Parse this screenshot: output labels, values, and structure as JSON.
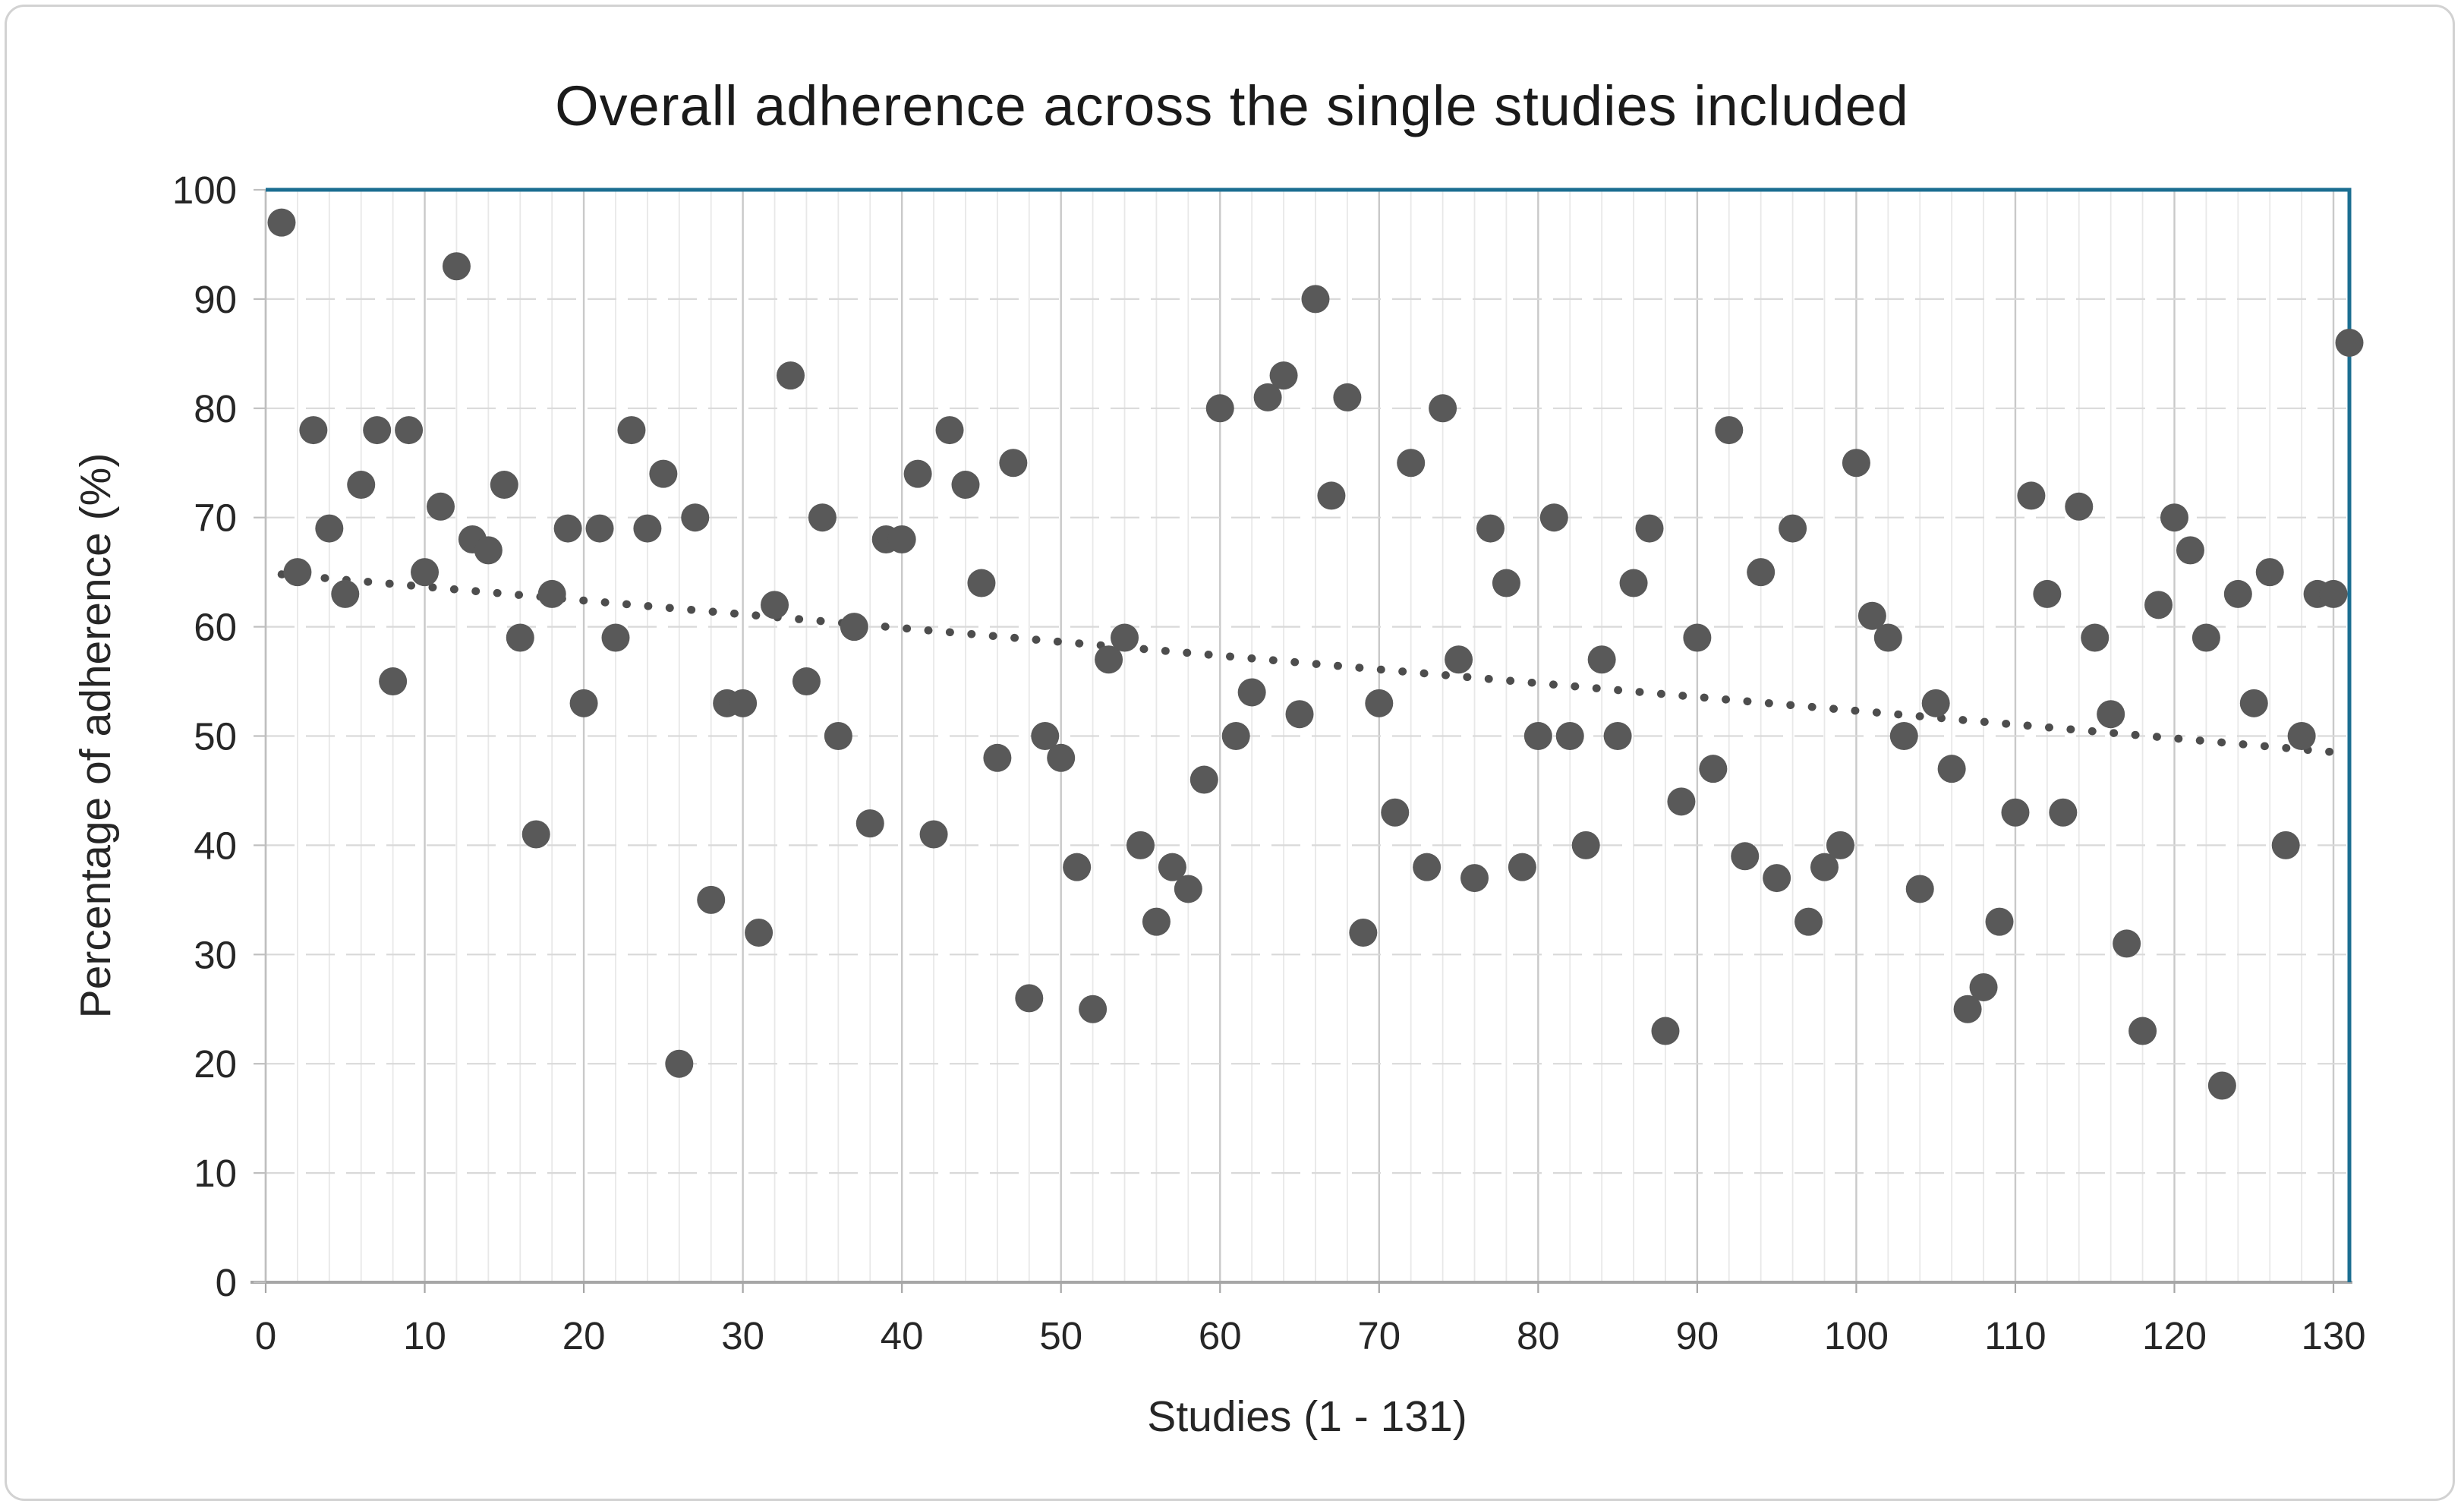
{
  "chart_data": {
    "type": "scatter",
    "title": "Overall adherence across the single studies included",
    "xlabel": "Studies (1 - 131)",
    "ylabel": "Percentage of adherence (%)",
    "xlim": [
      0,
      131
    ],
    "ylim": [
      0,
      100
    ],
    "x_ticks": [
      0,
      10,
      20,
      30,
      40,
      50,
      60,
      70,
      80,
      90,
      100,
      110,
      120,
      130
    ],
    "y_ticks": [
      0,
      10,
      20,
      30,
      40,
      50,
      60,
      70,
      80,
      90,
      100
    ],
    "grid": {
      "x_minor_step": 2,
      "x_major_step": 10,
      "y_step": 10,
      "horizontal_style": "dashed",
      "vertical_style": "solid"
    },
    "legend": "none",
    "series": [
      {
        "name": "Overall adherence",
        "points": [
          [
            1,
            97
          ],
          [
            2,
            65
          ],
          [
            3,
            78
          ],
          [
            4,
            69
          ],
          [
            5,
            63
          ],
          [
            6,
            73
          ],
          [
            7,
            78
          ],
          [
            8,
            55
          ],
          [
            9,
            78
          ],
          [
            10,
            65
          ],
          [
            11,
            71
          ],
          [
            12,
            93
          ],
          [
            13,
            68
          ],
          [
            14,
            67
          ],
          [
            15,
            73
          ],
          [
            16,
            59
          ],
          [
            17,
            41
          ],
          [
            18,
            63
          ],
          [
            19,
            69
          ],
          [
            20,
            53
          ],
          [
            21,
            69
          ],
          [
            22,
            59
          ],
          [
            23,
            78
          ],
          [
            24,
            69
          ],
          [
            25,
            74
          ],
          [
            26,
            20
          ],
          [
            27,
            70
          ],
          [
            28,
            35
          ],
          [
            29,
            53
          ],
          [
            30,
            53
          ],
          [
            31,
            32
          ],
          [
            32,
            62
          ],
          [
            33,
            83
          ],
          [
            34,
            55
          ],
          [
            35,
            70
          ],
          [
            36,
            50
          ],
          [
            37,
            60
          ],
          [
            38,
            42
          ],
          [
            39,
            68
          ],
          [
            40,
            68
          ],
          [
            41,
            74
          ],
          [
            42,
            41
          ],
          [
            43,
            78
          ],
          [
            44,
            73
          ],
          [
            45,
            64
          ],
          [
            46,
            48
          ],
          [
            47,
            75
          ],
          [
            48,
            26
          ],
          [
            49,
            50
          ],
          [
            50,
            48
          ],
          [
            51,
            38
          ],
          [
            52,
            25
          ],
          [
            53,
            57
          ],
          [
            54,
            59
          ],
          [
            55,
            40
          ],
          [
            56,
            33
          ],
          [
            57,
            38
          ],
          [
            58,
            36
          ],
          [
            59,
            46
          ],
          [
            60,
            80
          ],
          [
            61,
            50
          ],
          [
            62,
            54
          ],
          [
            63,
            81
          ],
          [
            64,
            83
          ],
          [
            65,
            52
          ],
          [
            66,
            90
          ],
          [
            67,
            72
          ],
          [
            68,
            81
          ],
          [
            69,
            32
          ],
          [
            70,
            53
          ],
          [
            71,
            43
          ],
          [
            72,
            75
          ],
          [
            73,
            38
          ],
          [
            74,
            80
          ],
          [
            75,
            57
          ],
          [
            76,
            37
          ],
          [
            77,
            69
          ],
          [
            78,
            64
          ],
          [
            79,
            38
          ],
          [
            80,
            50
          ],
          [
            81,
            70
          ],
          [
            82,
            50
          ],
          [
            83,
            40
          ],
          [
            84,
            57
          ],
          [
            85,
            50
          ],
          [
            86,
            64
          ],
          [
            87,
            69
          ],
          [
            88,
            23
          ],
          [
            89,
            44
          ],
          [
            90,
            59
          ],
          [
            91,
            47
          ],
          [
            92,
            78
          ],
          [
            93,
            39
          ],
          [
            94,
            65
          ],
          [
            95,
            37
          ],
          [
            96,
            69
          ],
          [
            97,
            33
          ],
          [
            98,
            38
          ],
          [
            99,
            40
          ],
          [
            100,
            75
          ],
          [
            101,
            61
          ],
          [
            102,
            59
          ],
          [
            103,
            50
          ],
          [
            104,
            36
          ],
          [
            105,
            53
          ],
          [
            106,
            47
          ],
          [
            107,
            25
          ],
          [
            108,
            27
          ],
          [
            109,
            33
          ],
          [
            110,
            43
          ],
          [
            111,
            72
          ],
          [
            112,
            63
          ],
          [
            113,
            43
          ],
          [
            114,
            71
          ],
          [
            115,
            59
          ],
          [
            116,
            52
          ],
          [
            117,
            31
          ],
          [
            118,
            23
          ],
          [
            119,
            62
          ],
          [
            120,
            70
          ],
          [
            121,
            67
          ],
          [
            122,
            59
          ],
          [
            123,
            18
          ],
          [
            124,
            63
          ],
          [
            125,
            53
          ],
          [
            126,
            65
          ],
          [
            127,
            40
          ],
          [
            128,
            50
          ],
          [
            129,
            63
          ],
          [
            130,
            63
          ],
          [
            131,
            86
          ]
        ]
      }
    ],
    "trendline": {
      "style": "dotted",
      "start": {
        "x": 1,
        "y": 64.8
      },
      "end": {
        "x": 131,
        "y": 48.4
      }
    }
  },
  "colors": {
    "marker": "#595959",
    "trendline": "#4d4d4d",
    "plot_border": "#1b6e91",
    "grid_h": "#d9d9d9",
    "grid_v_minor": "#e8e8e8",
    "grid_v_major": "#c9c9c9",
    "axis_x": "#a6a6a6",
    "axis_y": "#bfbfbf",
    "text": "#262626",
    "title_text": "#1a1a1a"
  }
}
